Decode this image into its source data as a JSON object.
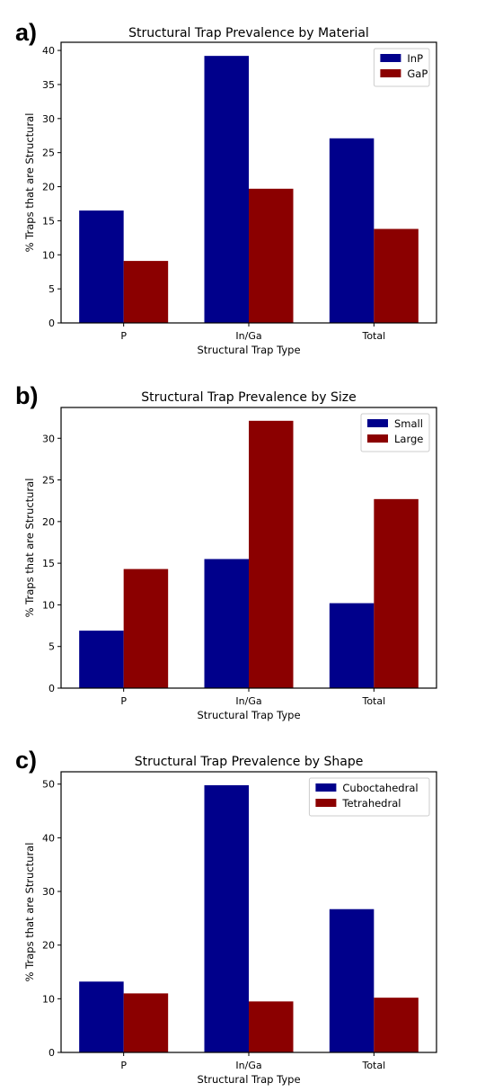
{
  "chart_data": [
    {
      "panel_label": "a)",
      "type": "bar",
      "title": "Structural Trap Prevalence by Material",
      "xlabel": "Structural Trap Type",
      "ylabel": "% Traps that are Structural",
      "categories": [
        "P",
        "In/Ga",
        "Total"
      ],
      "series": [
        {
          "name": "InP",
          "color": "#00008b",
          "values": [
            16.5,
            39.2,
            27.1
          ]
        },
        {
          "name": "GaP",
          "color": "#8b0000",
          "values": [
            9.1,
            19.7,
            13.8
          ]
        }
      ],
      "ylim": [
        0,
        41.2
      ],
      "yticks": [
        0,
        5,
        10,
        15,
        20,
        25,
        30,
        35,
        40
      ],
      "grid": false,
      "legend": "top-right"
    },
    {
      "panel_label": "b)",
      "type": "bar",
      "title": "Structural Trap Prevalence by Size",
      "xlabel": "Structural Trap Type",
      "ylabel": "% Traps that are Structural",
      "categories": [
        "P",
        "In/Ga",
        "Total"
      ],
      "series": [
        {
          "name": "Small",
          "color": "#00008b",
          "values": [
            6.9,
            15.5,
            10.2
          ]
        },
        {
          "name": "Large",
          "color": "#8b0000",
          "values": [
            14.3,
            32.1,
            22.7
          ]
        }
      ],
      "ylim": [
        0,
        33.7
      ],
      "yticks": [
        0,
        5,
        10,
        15,
        20,
        25,
        30
      ],
      "grid": false,
      "legend": "top-right"
    },
    {
      "panel_label": "c)",
      "type": "bar",
      "title": "Structural Trap Prevalence by Shape",
      "xlabel": "Structural Trap Type",
      "ylabel": "% Traps that are Structural",
      "categories": [
        "P",
        "In/Ga",
        "Total"
      ],
      "series": [
        {
          "name": "Cuboctahedral",
          "color": "#00008b",
          "values": [
            13.2,
            49.8,
            26.7
          ]
        },
        {
          "name": "Tetrahedral",
          "color": "#8b0000",
          "values": [
            11.0,
            9.5,
            10.2
          ]
        }
      ],
      "ylim": [
        0,
        52.3
      ],
      "yticks": [
        0,
        10,
        20,
        30,
        40,
        50
      ],
      "grid": false,
      "legend": "top-right"
    }
  ]
}
